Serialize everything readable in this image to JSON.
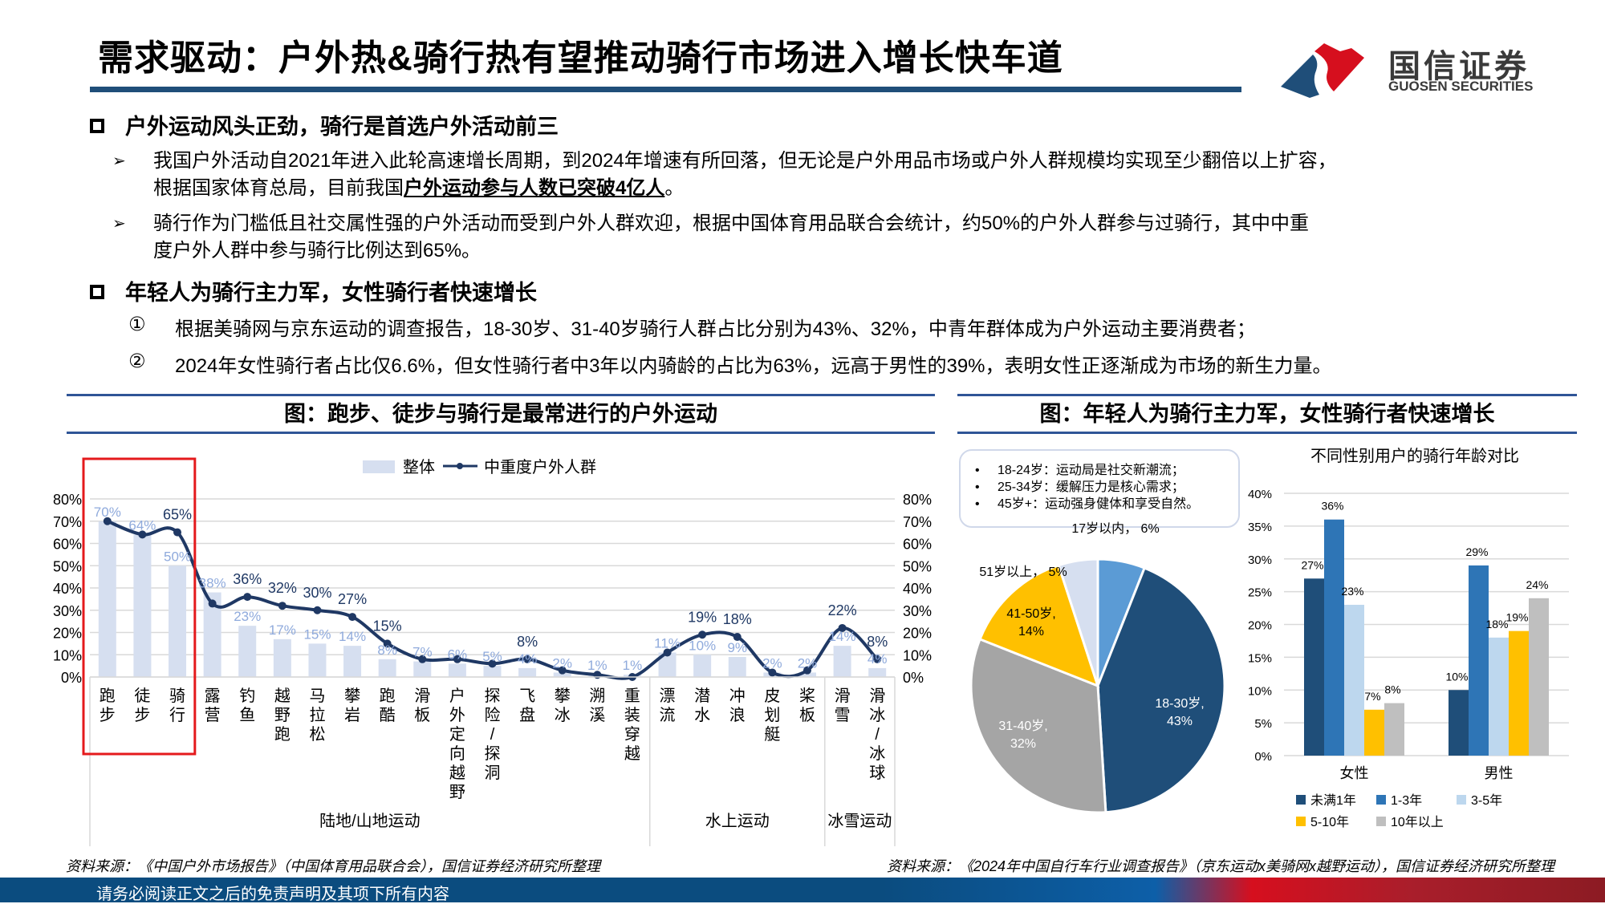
{
  "header": {
    "title": "需求驱动：户外热&骑行热有望推动骑行市场进入增长快车道",
    "logo_cn": "国信证券",
    "logo_en": "GUOSEN SECURITIES",
    "colors": {
      "brand_blue": "#1f4e79",
      "brand_red": "#d60f1e"
    }
  },
  "sections": [
    {
      "heading": "户外运动风头正劲，骑行是首选户外活动前三",
      "bullets": [
        {
          "line1": "我国户外活动自2021年进入此轮高速增长周期，到2024年增速有所回落，但无论是户外用品市场或户外人群规模均实现至少翻倍以上扩容，",
          "line2_prefix": "根据国家体育总局，目前我国",
          "line2_emph": "户外运动参与人数已突破4亿人",
          "line2_suffix": "。"
        },
        {
          "line1": "骑行作为门槛低且社交属性强的户外活动而受到户外人群欢迎，根据中国体育用品联合会统计，约50%的户外人群参与过骑行，其中中重",
          "line2": "度户外人群中参与骑行比例达到65%。"
        }
      ]
    },
    {
      "heading": "年轻人为骑行主力军，女性骑行者快速增长",
      "items": [
        {
          "marker": "①",
          "text": "根据美骑网与京东运动的调查报告，18-30岁、31-40岁骑行人群占比分别为43%、32%，中青年群体成为户外运动主要消费者；"
        },
        {
          "marker": "②",
          "text": "2024年女性骑行者占比仅6.6%，但女性骑行者中3年以内骑龄的占比为63%，远高于男性的39%，表明女性正逐渐成为市场的新生力量。"
        }
      ]
    }
  ],
  "figures": {
    "left_title": "图：跑步、徒步与骑行是最常进行的户外运动",
    "right_title": "图：年轻人为骑行主力军，女性骑行者快速增长",
    "left_source": "资料来源：《中国户外市场报告》（中国体育用品联合会），国信证券经济研究所整理",
    "right_source": "资料来源：《2024年中国自行车行业调查报告》（京东运动x美骑网x越野运动），国信证券经济研究所整理",
    "callout": [
      "18-24岁：运动局是社交新潮流；",
      "25-34岁：缓解压力是核心需求；",
      "45岁+：运动强身健体和享受自然。"
    ],
    "bullet_char": "•"
  },
  "chart_data": [
    {
      "type": "bar+line",
      "title": "",
      "legend": [
        "整体",
        "中重度户外人群"
      ],
      "legend_position": "top",
      "categories": [
        "跑步",
        "徒步",
        "骑行",
        "露营",
        "钓鱼",
        "越野跑",
        "马拉松",
        "攀岩",
        "跑酷",
        "滑板",
        "户外定向越野",
        "探险/探洞",
        "飞盘",
        "攀冰",
        "溯溪",
        "重装穿越",
        "漂流",
        "潜水",
        "冲浪",
        "皮划艇",
        "桨板",
        "滑雪",
        "滑冰/冰球"
      ],
      "groups": [
        {
          "label": "陆地/山地运动",
          "start": 0,
          "end": 15
        },
        {
          "label": "水上运动",
          "start": 16,
          "end": 20
        },
        {
          "label": "冰雪运动",
          "start": 21,
          "end": 22
        }
      ],
      "series": [
        {
          "name": "整体",
          "type": "bar",
          "color": "#d6dff0",
          "label_color": "#8faadc",
          "values": [
            70,
            64,
            50,
            38,
            23,
            17,
            15,
            14,
            8,
            7,
            6,
            5,
            4,
            2,
            1,
            1,
            11,
            10,
            9,
            2,
            2,
            14,
            4
          ]
        },
        {
          "name": "中重度户外人群",
          "type": "line",
          "color": "#1f3864",
          "label_color": "#1f3864",
          "values": [
            70,
            64,
            65,
            33,
            36,
            32,
            30,
            27,
            15,
            8,
            8,
            6,
            8,
            3,
            1,
            0,
            11,
            19,
            18,
            2,
            3,
            22,
            8
          ],
          "labeled": [
            false,
            false,
            true,
            false,
            true,
            true,
            true,
            true,
            true,
            false,
            false,
            false,
            true,
            false,
            false,
            false,
            false,
            true,
            true,
            false,
            false,
            true,
            true
          ]
        }
      ],
      "y_ticks": [
        "0%",
        "10%",
        "20%",
        "30%",
        "40%",
        "50%",
        "60%",
        "70%",
        "80%"
      ],
      "ylim": [
        0,
        80
      ],
      "highlight": {
        "categories": [
          "跑步",
          "徒步",
          "骑行"
        ],
        "color": "#e41a1c"
      },
      "grid": true
    },
    {
      "type": "pie",
      "title": "",
      "slices": [
        {
          "label": "17岁以内",
          "value": 6,
          "color": "#5b9bd5"
        },
        {
          "label": "18-30岁",
          "value": 43,
          "color": "#1f4e79"
        },
        {
          "label": "31-40岁",
          "value": 32,
          "color": "#a5a5a5"
        },
        {
          "label": "41-50岁",
          "value": 14,
          "color": "#ffc000"
        },
        {
          "label": "51岁以上",
          "value": 5,
          "color": "#d6dff0"
        }
      ]
    },
    {
      "type": "bar",
      "title": "不同性别用户的骑行年龄对比",
      "categories": [
        "女性",
        "男性"
      ],
      "series": [
        {
          "name": "未满1年",
          "color": "#1f4e79",
          "values": [
            27,
            10
          ]
        },
        {
          "name": "1-3年",
          "color": "#2e75b6",
          "values": [
            36,
            29
          ]
        },
        {
          "name": "3-5年",
          "color": "#bdd7ee",
          "values": [
            23,
            18
          ]
        },
        {
          "name": "5-10年",
          "color": "#ffc000",
          "values": [
            7,
            19
          ]
        },
        {
          "name": "10年以上",
          "color": "#bfbfbf",
          "values": [
            8,
            24
          ]
        }
      ],
      "data_labels": [
        [
          "27%",
          "36%",
          "23%",
          "7%",
          "8%"
        ],
        [
          "10%",
          "29%",
          "18%",
          "19%",
          "24%"
        ]
      ],
      "y_ticks": [
        "0%",
        "5%",
        "10%",
        "15%",
        "20%",
        "25%",
        "30%",
        "35%",
        "40%"
      ],
      "ylim": [
        0,
        40
      ],
      "legend_position": "bottom",
      "grid": true
    }
  ],
  "footer": {
    "disclaimer": "请务必阅读正文之后的免责声明及其项下所有内容"
  }
}
